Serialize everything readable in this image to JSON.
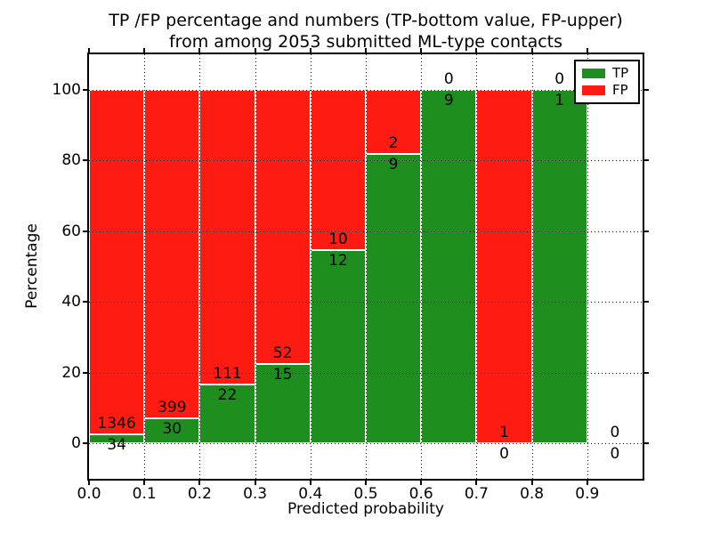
{
  "chart_data": {
    "type": "bar",
    "stacked": true,
    "normalized": "percent",
    "title_line1": "TP /FP percentage and numbers (TP-bottom value, FP-upper)",
    "title_line2": "from among 2053 submitted ML-type contacts",
    "xlabel": "Predicted probability",
    "ylabel": "Percentage",
    "xlim": [
      0.0,
      1.0
    ],
    "ylim": [
      -10,
      110
    ],
    "xticks": [
      {
        "value": 0.0,
        "label": "0.0"
      },
      {
        "value": 0.1,
        "label": "0.1"
      },
      {
        "value": 0.2,
        "label": "0.2"
      },
      {
        "value": 0.3,
        "label": "0.3"
      },
      {
        "value": 0.4,
        "label": "0.4"
      },
      {
        "value": 0.5,
        "label": "0.5"
      },
      {
        "value": 0.6,
        "label": "0.6"
      },
      {
        "value": 0.7,
        "label": "0.7"
      },
      {
        "value": 0.8,
        "label": "0.8"
      },
      {
        "value": 0.9,
        "label": "0.9"
      }
    ],
    "yticks": [
      {
        "value": 0,
        "label": "0"
      },
      {
        "value": 20,
        "label": "20"
      },
      {
        "value": 40,
        "label": "40"
      },
      {
        "value": 60,
        "label": "60"
      },
      {
        "value": 80,
        "label": "80"
      },
      {
        "value": 100,
        "label": "100"
      }
    ],
    "grid": true,
    "grid_style": "dotted",
    "total_contacts": 2053,
    "legend": {
      "position": "upper right",
      "entries": [
        {
          "label": "TP",
          "color": "#1e8e1e"
        },
        {
          "label": "FP",
          "color": "#fd1b12"
        }
      ]
    },
    "bins": [
      {
        "range": [
          0.0,
          0.1
        ],
        "tp": 34,
        "fp": 1346
      },
      {
        "range": [
          0.1,
          0.2
        ],
        "tp": 30,
        "fp": 399
      },
      {
        "range": [
          0.2,
          0.3
        ],
        "tp": 22,
        "fp": 111
      },
      {
        "range": [
          0.3,
          0.4
        ],
        "tp": 15,
        "fp": 52
      },
      {
        "range": [
          0.4,
          0.5
        ],
        "tp": 12,
        "fp": 10
      },
      {
        "range": [
          0.5,
          0.6
        ],
        "tp": 9,
        "fp": 2
      },
      {
        "range": [
          0.6,
          0.7
        ],
        "tp": 9,
        "fp": 0
      },
      {
        "range": [
          0.7,
          0.8
        ],
        "tp": 0,
        "fp": 1
      },
      {
        "range": [
          0.8,
          0.9
        ],
        "tp": 1,
        "fp": 0
      },
      {
        "range": [
          0.9,
          1.0
        ],
        "tp": 0,
        "fp": 0
      }
    ]
  }
}
